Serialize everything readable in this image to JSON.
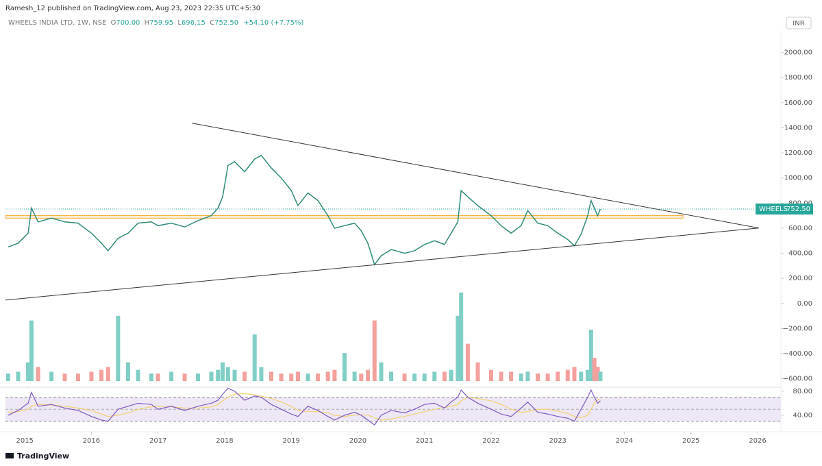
{
  "header": {
    "publisher": "Ramesh_12 published on TradingView.com, Aug 23, 2023 22:35 UTC+5:30",
    "symbol": "WHEELS INDIA LTD, 1W, NSE",
    "ohlc": [
      "O",
      "700.00",
      "H",
      "759.95",
      "L",
      "696.15",
      "C",
      "752.50"
    ],
    "change": "+54.10 (+7.75%)",
    "currency": "INR"
  },
  "footer": "TradingView",
  "chart_data": [
    {
      "type": "line",
      "color": "#2e8b7a",
      "x": [
        2014.75,
        2014.9,
        2015.05,
        2015.1,
        2015.2,
        2015.4,
        2015.6,
        2015.8,
        2016.0,
        2016.15,
        2016.25,
        2016.4,
        2016.55,
        2016.7,
        2016.9,
        2017.0,
        2017.2,
        2017.4,
        2017.6,
        2017.8,
        2017.9,
        2017.97,
        2018.05,
        2018.15,
        2018.3,
        2018.45,
        2018.55,
        2018.7,
        2018.85,
        2019.0,
        2019.1,
        2019.25,
        2019.4,
        2019.55,
        2019.65,
        2019.8,
        2019.95,
        2020.05,
        2020.15,
        2020.25,
        2020.35,
        2020.5,
        2020.7,
        2020.85,
        2021.0,
        2021.15,
        2021.3,
        2021.4,
        2021.5,
        2021.55,
        2021.65,
        2021.8,
        2022.0,
        2022.15,
        2022.3,
        2022.45,
        2022.55,
        2022.7,
        2022.85,
        2023.0,
        2023.15,
        2023.25,
        2023.35,
        2023.45,
        2023.5,
        2023.55,
        2023.6,
        2023.64
      ],
      "values": [
        450,
        480,
        560,
        760,
        650,
        680,
        650,
        640,
        560,
        480,
        420,
        520,
        560,
        640,
        650,
        620,
        640,
        610,
        660,
        700,
        760,
        850,
        1100,
        1130,
        1050,
        1150,
        1180,
        1080,
        1000,
        900,
        780,
        880,
        820,
        700,
        600,
        620,
        640,
        580,
        480,
        310,
        380,
        430,
        400,
        420,
        470,
        500,
        470,
        560,
        650,
        900,
        850,
        780,
        700,
        620,
        560,
        620,
        740,
        640,
        620,
        560,
        510,
        460,
        550,
        700,
        820,
        760,
        700,
        752.5
      ],
      "xlim": [
        2014.71,
        2026.35
      ],
      "ylim": [
        -640,
        2200
      ],
      "yticks": [
        {
          "value": 2000,
          "label": "2000.00"
        },
        {
          "value": 1800,
          "label": "1800.00"
        },
        {
          "value": 1600,
          "label": "1600.00"
        },
        {
          "value": 1400,
          "label": "1400.00"
        },
        {
          "value": 1200,
          "label": "1200.00"
        },
        {
          "value": 1000,
          "label": "1000.00"
        },
        {
          "value": 800,
          "label": "800.00"
        },
        {
          "value": 600,
          "label": "600.00"
        },
        {
          "value": 400,
          "label": "400.00"
        },
        {
          "value": 200,
          "label": "200.00"
        },
        {
          "value": 0,
          "label": "0.00"
        },
        {
          "value": -200,
          "label": "−200.00"
        },
        {
          "value": -400,
          "label": "−400.00"
        },
        {
          "value": -600,
          "label": "−600.00"
        }
      ],
      "trendlines": [
        {
          "x": [
            2017.51,
            2026.02
          ],
          "y": [
            1437,
            601
          ],
          "color": "#333333"
        },
        {
          "x": [
            2014.71,
            2026.02
          ],
          "y": [
            27,
            601
          ],
          "color": "#333333"
        }
      ],
      "zone": {
        "x": [
          2014.71,
          2024.88
        ],
        "y": [
          680,
          700
        ],
        "color": "#f5a623"
      },
      "price_tag": {
        "name": "WHEELS",
        "label": "752.50",
        "value": 752.5,
        "color": "#26a69a"
      }
    },
    {
      "type": "bar",
      "x": [
        2014.75,
        2014.9,
        2015.05,
        2015.1,
        2015.2,
        2015.4,
        2015.6,
        2015.8,
        2016.0,
        2016.15,
        2016.25,
        2016.4,
        2016.55,
        2016.7,
        2016.9,
        2017.0,
        2017.2,
        2017.4,
        2017.6,
        2017.8,
        2017.9,
        2017.97,
        2018.05,
        2018.15,
        2018.3,
        2018.45,
        2018.55,
        2018.7,
        2018.85,
        2019.0,
        2019.1,
        2019.25,
        2019.4,
        2019.55,
        2019.65,
        2019.8,
        2019.95,
        2020.05,
        2020.15,
        2020.25,
        2020.35,
        2020.5,
        2020.7,
        2020.85,
        2021.0,
        2021.15,
        2021.3,
        2021.4,
        2021.5,
        2021.55,
        2021.65,
        2021.8,
        2022.0,
        2022.15,
        2022.3,
        2022.45,
        2022.55,
        2022.7,
        2022.85,
        2023.0,
        2023.15,
        2023.25,
        2023.35,
        2023.45,
        2023.5,
        2023.55,
        2023.6,
        2023.64
      ],
      "values": [
        8,
        10,
        20,
        65,
        15,
        10,
        8,
        8,
        10,
        12,
        15,
        70,
        20,
        12,
        8,
        8,
        10,
        8,
        8,
        10,
        12,
        20,
        15,
        12,
        10,
        50,
        15,
        10,
        8,
        8,
        10,
        8,
        8,
        10,
        12,
        30,
        10,
        8,
        12,
        65,
        20,
        10,
        8,
        8,
        8,
        10,
        10,
        12,
        70,
        95,
        40,
        20,
        12,
        10,
        10,
        8,
        10,
        8,
        8,
        10,
        12,
        15,
        10,
        12,
        55,
        25,
        15,
        10
      ],
      "colors": [
        "#7fcfc6",
        "#7fcfc6",
        "#7fcfc6",
        "#7fcfc6",
        "#f4a09c",
        "#7fcfc6",
        "#f4a09c",
        "#f4a09c",
        "#f4a09c",
        "#f4a09c",
        "#f4a09c",
        "#7fcfc6",
        "#7fcfc6",
        "#7fcfc6",
        "#7fcfc6",
        "#f4a09c",
        "#7fcfc6",
        "#f4a09c",
        "#7fcfc6",
        "#7fcfc6",
        "#7fcfc6",
        "#7fcfc6",
        "#7fcfc6",
        "#7fcfc6",
        "#f4a09c",
        "#7fcfc6",
        "#7fcfc6",
        "#f4a09c",
        "#f4a09c",
        "#f4a09c",
        "#f4a09c",
        "#7fcfc6",
        "#f4a09c",
        "#f4a09c",
        "#f4a09c",
        "#7fcfc6",
        "#7fcfc6",
        "#f4a09c",
        "#f4a09c",
        "#f4a09c",
        "#7fcfc6",
        "#7fcfc6",
        "#f4a09c",
        "#7fcfc6",
        "#7fcfc6",
        "#7fcfc6",
        "#f4a09c",
        "#7fcfc6",
        "#7fcfc6",
        "#7fcfc6",
        "#f4a09c",
        "#f4a09c",
        "#f4a09c",
        "#f4a09c",
        "#f4a09c",
        "#7fcfc6",
        "#7fcfc6",
        "#f4a09c",
        "#f4a09c",
        "#f4a09c",
        "#f4a09c",
        "#f4a09c",
        "#7fcfc6",
        "#7fcfc6",
        "#7fcfc6",
        "#f4a09c",
        "#f4a09c",
        "#7fcfc6"
      ],
      "xlim": [
        2014.71,
        2026.35
      ],
      "ylim": [
        0,
        100
      ]
    },
    {
      "type": "line",
      "x": [
        2014.75,
        2014.9,
        2015.05,
        2015.1,
        2015.2,
        2015.4,
        2015.6,
        2015.8,
        2016.0,
        2016.15,
        2016.25,
        2016.4,
        2016.55,
        2016.7,
        2016.9,
        2017.0,
        2017.2,
        2017.4,
        2017.6,
        2017.8,
        2017.9,
        2017.97,
        2018.05,
        2018.15,
        2018.3,
        2018.45,
        2018.55,
        2018.7,
        2018.85,
        2019.0,
        2019.1,
        2019.25,
        2019.4,
        2019.55,
        2019.65,
        2019.8,
        2019.95,
        2020.05,
        2020.15,
        2020.25,
        2020.35,
        2020.5,
        2020.7,
        2020.85,
        2021.0,
        2021.15,
        2021.3,
        2021.4,
        2021.5,
        2021.55,
        2021.65,
        2021.8,
        2022.0,
        2022.15,
        2022.3,
        2022.45,
        2022.55,
        2022.7,
        2022.85,
        2023.0,
        2023.15,
        2023.25,
        2023.35,
        2023.45,
        2023.5,
        2023.55,
        2023.6,
        2023.64
      ],
      "series": [
        {
          "color": "#f4d06f",
          "values": [
            45,
            46,
            50,
            55,
            58,
            57,
            55,
            52,
            48,
            42,
            38,
            40,
            44,
            50,
            54,
            55,
            54,
            52,
            52,
            54,
            58,
            64,
            70,
            75,
            76,
            74,
            72,
            68,
            62,
            55,
            48,
            46,
            46,
            44,
            40,
            38,
            40,
            41,
            40,
            36,
            32,
            34,
            38,
            42,
            46,
            50,
            53,
            55,
            58,
            64,
            70,
            68,
            64,
            58,
            50,
            45,
            46,
            50,
            50,
            47,
            43,
            38,
            36,
            40,
            50,
            60,
            66,
            66
          ]
        },
        {
          "color": "#7e57c2",
          "values": [
            40,
            48,
            60,
            78,
            55,
            58,
            52,
            48,
            38,
            32,
            30,
            50,
            55,
            60,
            58,
            50,
            55,
            48,
            55,
            60,
            65,
            75,
            85,
            80,
            65,
            72,
            70,
            58,
            50,
            42,
            38,
            55,
            48,
            38,
            32,
            40,
            45,
            40,
            32,
            24,
            40,
            48,
            44,
            50,
            58,
            60,
            52,
            62,
            70,
            82,
            70,
            60,
            50,
            42,
            38,
            52,
            62,
            45,
            42,
            38,
            35,
            30,
            50,
            70,
            82,
            70,
            60,
            64
          ]
        }
      ],
      "band": [
        30,
        70
      ],
      "band_color": "#ede7f6",
      "midline": 50,
      "xlim": [
        2014.71,
        2026.35
      ],
      "ylim": [
        21.7,
        89
      ],
      "yticks": [
        {
          "value": 80,
          "label": "80.00"
        },
        {
          "value": 40,
          "label": "40.00"
        }
      ],
      "xticks": [
        2015,
        2016,
        2017,
        2018,
        2019,
        2020,
        2021,
        2022,
        2023,
        2024,
        2025,
        2026
      ]
    }
  ]
}
